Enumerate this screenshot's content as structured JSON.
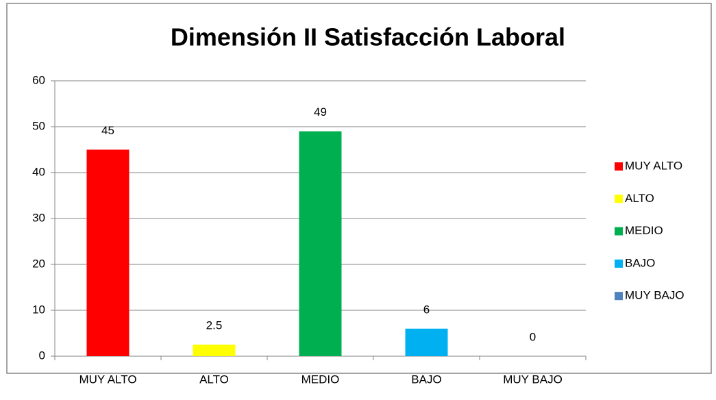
{
  "chart_data": {
    "type": "bar",
    "title": "Dimensión II Satisfacción Laboral",
    "categories": [
      "MUY ALTO",
      "ALTO",
      "MEDIO",
      "BAJO",
      "MUY BAJO"
    ],
    "values": [
      45,
      2.5,
      49,
      6,
      0
    ],
    "colors": [
      "#ff0000",
      "#ffff00",
      "#00b050",
      "#00b0f0",
      "#4f81bd"
    ],
    "ylim": [
      0,
      60
    ],
    "yticks": [
      0,
      10,
      20,
      30,
      40,
      50,
      60
    ],
    "grid": true,
    "legend": "right"
  }
}
